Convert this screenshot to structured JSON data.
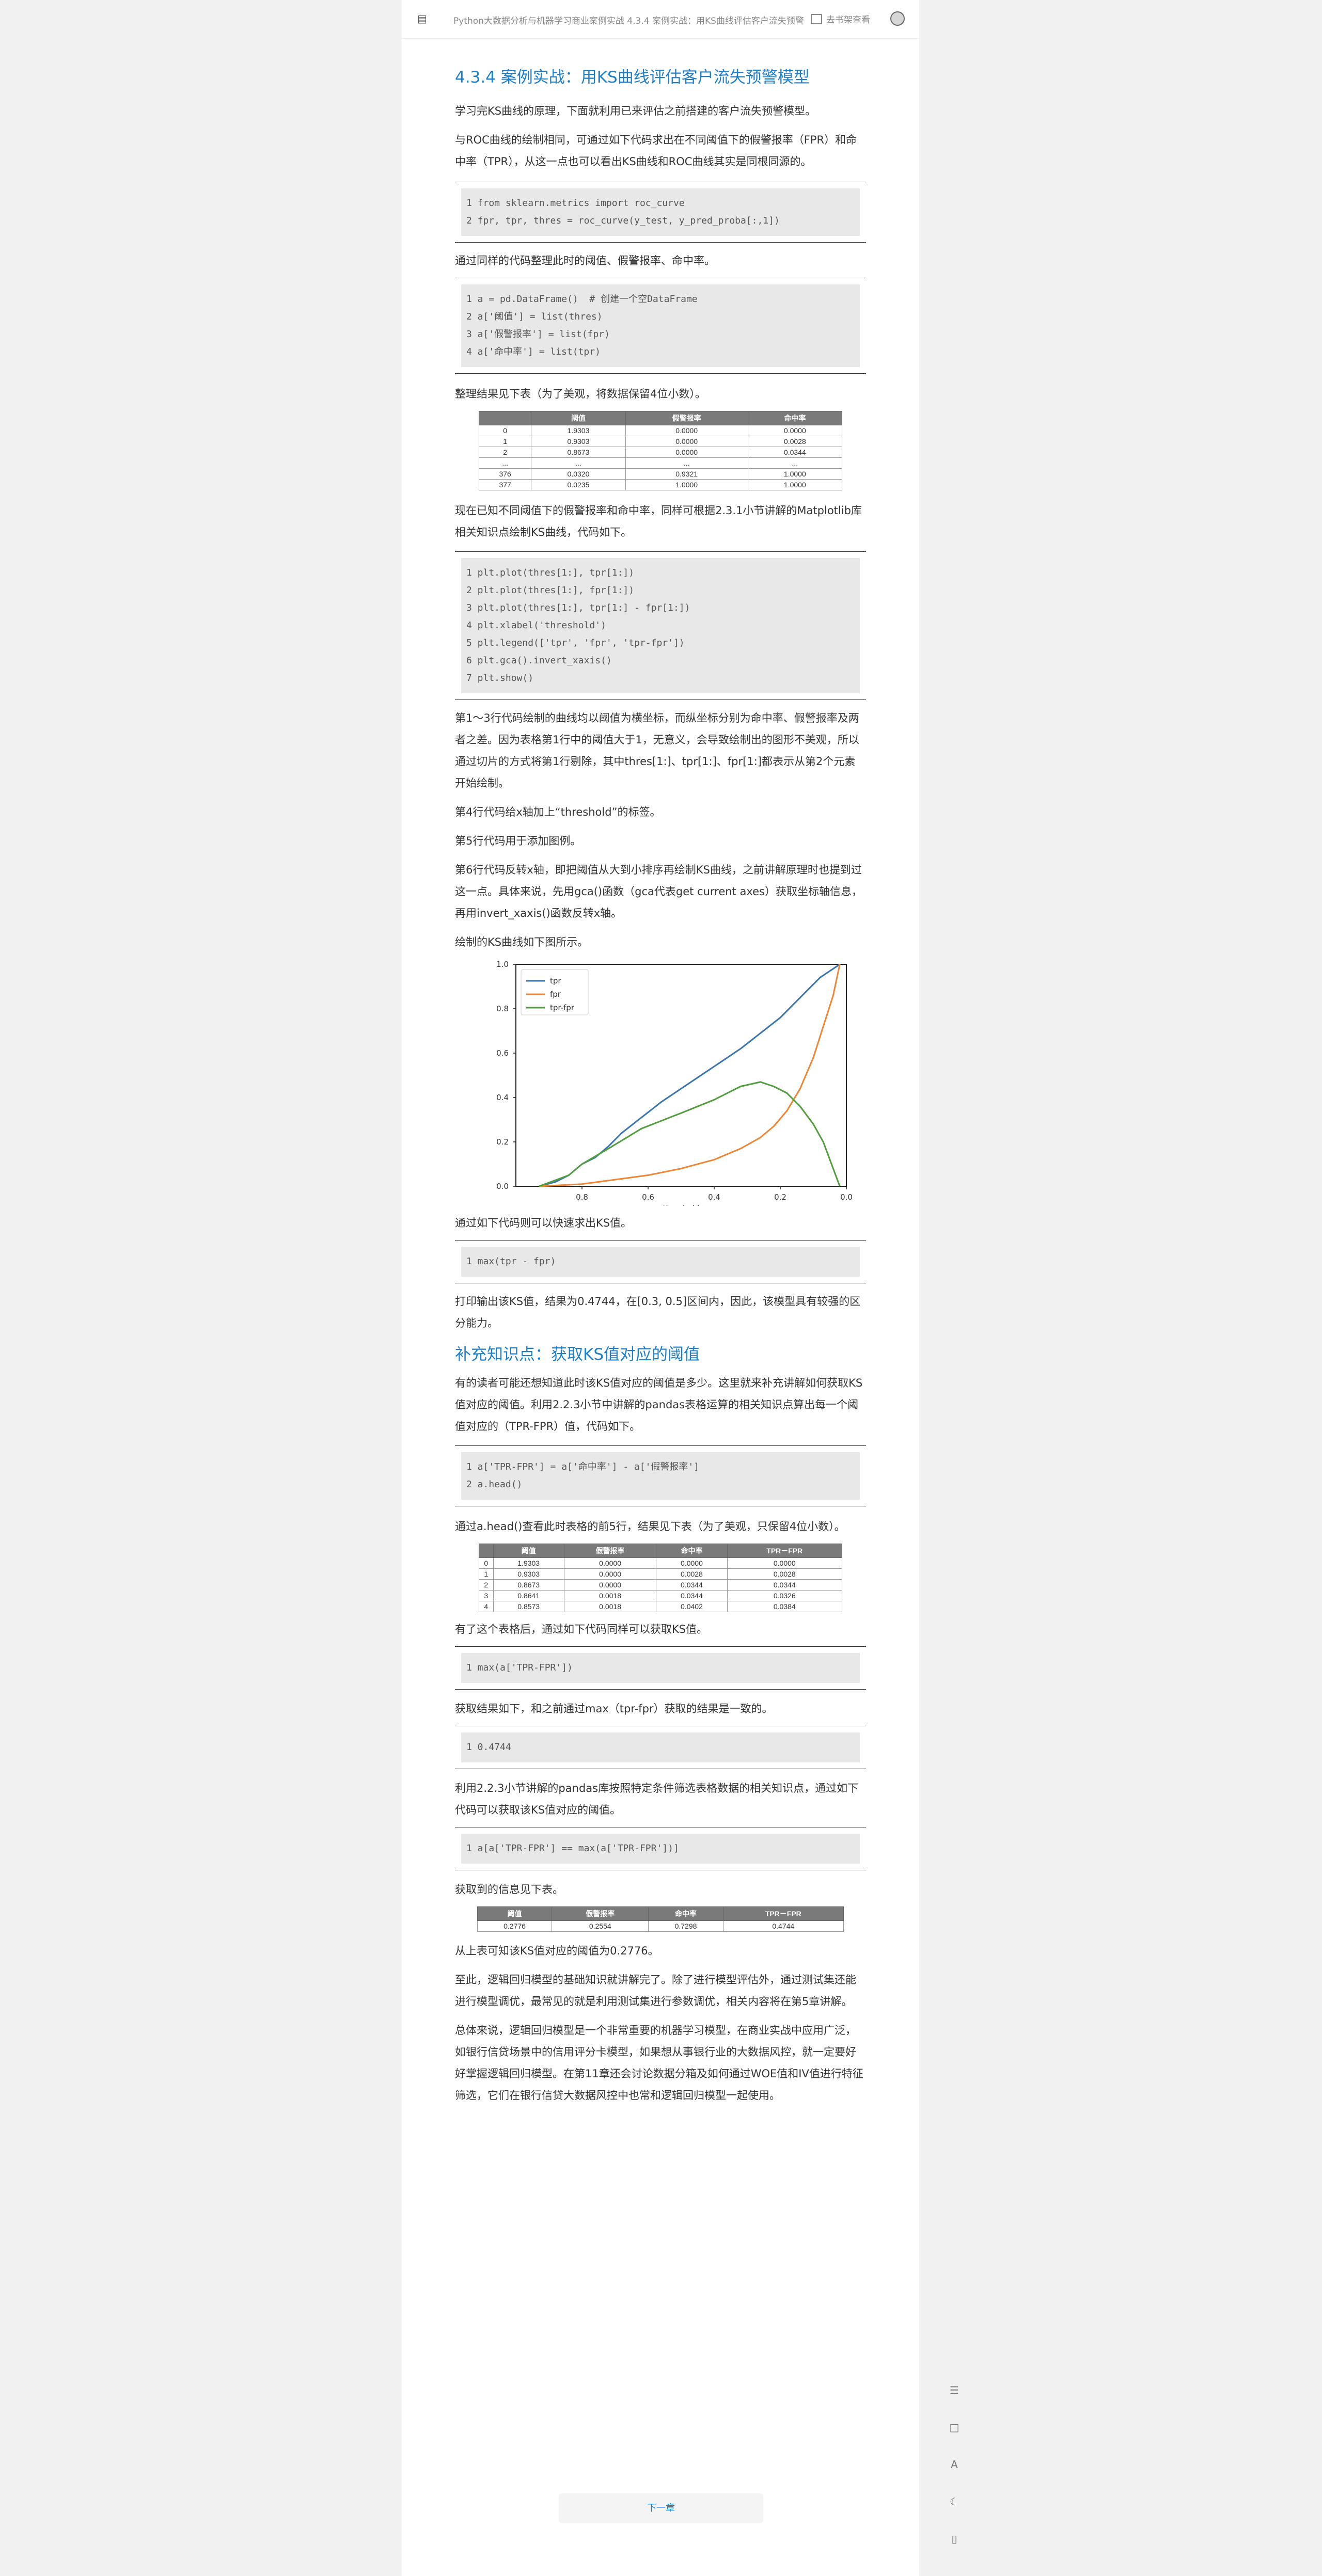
{
  "header": {
    "breadcrumb": "Python大数据分析与机器学习商业案例实战 4.3.4 案例实战：用KS曲线评估客户流失预警",
    "shelf_label": "去书架查看"
  },
  "section1": {
    "title": "4.3.4 案例实战：用KS曲线评估客户流失预警模型",
    "p1": "学习完KS曲线的原理，下面就利用已来评估之前搭建的客户流失预警模型。",
    "p2": "与ROC曲线的绘制相同，可通过如下代码求出在不同阈值下的假警报率（FPR）和命中率（TPR），从这一点也可以看出KS曲线和ROC曲线其实是同根同源的。",
    "code1": "1 from sklearn.metrics import roc_curve\n2 fpr, tpr, thres = roc_curve(y_test, y_pred_proba[:,1])",
    "p3": "通过同样的代码整理此时的阈值、假警报率、命中率。",
    "code2": "1 a = pd.DataFrame()  # 创建一个空DataFrame\n2 a['阈值'] = list(thres)\n3 a['假警报率'] = list(fpr)\n4 a['命中率'] = list(tpr)",
    "p4": "整理结果见下表（为了美观，将数据保留4位小数）。",
    "table1": {
      "headers": [
        "",
        "阈值",
        "假警报率",
        "命中率"
      ],
      "rows": [
        [
          "0",
          "1.9303",
          "0.0000",
          "0.0000"
        ],
        [
          "1",
          "0.9303",
          "0.0000",
          "0.0028"
        ],
        [
          "2",
          "0.8673",
          "0.0000",
          "0.0344"
        ],
        [
          "...",
          "...",
          "...",
          "..."
        ],
        [
          "376",
          "0.0320",
          "0.9321",
          "1.0000"
        ],
        [
          "377",
          "0.0235",
          "1.0000",
          "1.0000"
        ]
      ]
    },
    "p5": "现在已知不同阈值下的假警报率和命中率，同样可根据2.3.1小节讲解的Matplotlib库相关知识点绘制KS曲线，代码如下。",
    "code3": "1 plt.plot(thres[1:], tpr[1:])\n2 plt.plot(thres[1:], fpr[1:])\n3 plt.plot(thres[1:], tpr[1:] - fpr[1:])\n4 plt.xlabel('threshold')\n5 plt.legend(['tpr', 'fpr', 'tpr-fpr'])\n6 plt.gca().invert_xaxis()\n7 plt.show()",
    "p6": "第1～3行代码绘制的曲线均以阈值为横坐标，而纵坐标分别为命中率、假警报率及两者之差。因为表格第1行中的阈值大于1，无意义，会导致绘制出的图形不美观，所以通过切片的方式将第1行剔除，其中thres[1:]、tpr[1:]、fpr[1:]都表示从第2个元素开始绘制。",
    "p7": "第4行代码给x轴加上“threshold”的标签。",
    "p8": "第5行代码用于添加图例。",
    "p9": "第6行代码反转x轴，即把阈值从大到小排序再绘制KS曲线，之前讲解原理时也提到过这一点。具体来说，先用gca()函数（gca代表get current axes）获取坐标轴信息，再用invert_xaxis()函数反转x轴。",
    "p10": "绘制的KS曲线如下图所示。",
    "p11": "通过如下代码则可以快速求出KS值。",
    "code4": "1 max(tpr - fpr)",
    "p12": "打印输出该KS值，结果为0.4744，在[0.3, 0.5]区间内，因此，该模型具有较强的区分能力。"
  },
  "section2": {
    "title": "补充知识点：获取KS值对应的阈值",
    "p1": "有的读者可能还想知道此时该KS值对应的阈值是多少。这里就来补充讲解如何获取KS值对应的阈值。利用2.2.3小节中讲解的pandas表格运算的相关知识点算出每一个阈值对应的（TPR-FPR）值，代码如下。",
    "code1": "1 a['TPR-FPR'] = a['命中率'] - a['假警报率']\n2 a.head()",
    "p2": "通过a.head()查看此时表格的前5行，结果见下表（为了美观，只保留4位小数）。",
    "table2": {
      "headers": [
        "",
        "阈值",
        "假警报率",
        "命中率",
        "TPR－FPR"
      ],
      "rows": [
        [
          "0",
          "1.9303",
          "0.0000",
          "0.0000",
          "0.0000"
        ],
        [
          "1",
          "0.9303",
          "0.0000",
          "0.0028",
          "0.0028"
        ],
        [
          "2",
          "0.8673",
          "0.0000",
          "0.0344",
          "0.0344"
        ],
        [
          "3",
          "0.8641",
          "0.0018",
          "0.0344",
          "0.0326"
        ],
        [
          "4",
          "0.8573",
          "0.0018",
          "0.0402",
          "0.0384"
        ]
      ]
    },
    "p3": "有了这个表格后，通过如下代码同样可以获取KS值。",
    "code2": "1 max(a['TPR-FPR'])",
    "p4": "获取结果如下，和之前通过max（tpr-fpr）获取的结果是一致的。",
    "code3": "1 0.4744",
    "p5": "利用2.2.3小节讲解的pandas库按照特定条件筛选表格数据的相关知识点，通过如下代码可以获取该KS值对应的阈值。",
    "code4": "1 a[a['TPR-FPR'] == max(a['TPR-FPR'])]",
    "p6": "获取到的信息见下表。",
    "table3": {
      "headers": [
        "阈值",
        "假警报率",
        "命中率",
        "TPR－FPR"
      ],
      "rows": [
        [
          "0.2776",
          "0.2554",
          "0.7298",
          "0.4744"
        ]
      ]
    },
    "p7": "从上表可知该KS值对应的阈值为0.2776。",
    "p8": "至此，逻辑回归模型的基础知识就讲解完了。除了进行模型评估外，通过测试集还能进行模型调优，最常见的就是利用测试集进行参数调优，相关内容将在第5章讲解。",
    "p9": "总体来说，逻辑回归模型是一个非常重要的机器学习模型，在商业实战中应用广泛，如银行信贷场景中的信用评分卡模型，如果想从事银行业的大数据风控，就一定要好好掌握逻辑回归模型。在第11章还会讨论数据分箱及如何通过WOE值和IV值进行特征筛选，它们在银行信贷大数据风控中也常和逻辑回归模型一起使用。"
  },
  "next_button": "下一章",
  "chart_data": {
    "type": "line",
    "title": "",
    "xlabel": "threshold",
    "ylabel": "",
    "xlim": [
      1.0,
      0.0
    ],
    "x_inverted": true,
    "ylim": [
      0.0,
      1.0
    ],
    "xticks": [
      "0.8",
      "0.6",
      "0.4",
      "0.2",
      "0.0"
    ],
    "yticks": [
      "0.0",
      "0.2",
      "0.4",
      "0.6",
      "0.8",
      "1.0"
    ],
    "legend": "top-left",
    "grid": false,
    "series": [
      {
        "name": "tpr",
        "color": "#3b75af",
        "x": [
          0.93,
          0.88,
          0.84,
          0.8,
          0.76,
          0.72,
          0.68,
          0.62,
          0.56,
          0.5,
          0.44,
          0.38,
          0.32,
          0.26,
          0.2,
          0.16,
          0.12,
          0.08,
          0.05,
          0.02
        ],
        "y": [
          0.0,
          0.02,
          0.05,
          0.1,
          0.13,
          0.18,
          0.24,
          0.31,
          0.38,
          0.44,
          0.5,
          0.56,
          0.62,
          0.69,
          0.76,
          0.82,
          0.88,
          0.94,
          0.97,
          1.0
        ]
      },
      {
        "name": "fpr",
        "color": "#ef8636",
        "x": [
          0.93,
          0.8,
          0.7,
          0.6,
          0.5,
          0.4,
          0.32,
          0.26,
          0.22,
          0.18,
          0.14,
          0.1,
          0.07,
          0.04,
          0.02
        ],
        "y": [
          0.0,
          0.01,
          0.03,
          0.05,
          0.08,
          0.12,
          0.17,
          0.22,
          0.27,
          0.34,
          0.44,
          0.58,
          0.72,
          0.86,
          1.0
        ]
      },
      {
        "name": "tpr-fpr",
        "color": "#519e3e",
        "x": [
          0.93,
          0.84,
          0.8,
          0.72,
          0.62,
          0.5,
          0.4,
          0.32,
          0.26,
          0.22,
          0.18,
          0.14,
          0.1,
          0.07,
          0.05,
          0.02
        ],
        "y": [
          0.0,
          0.05,
          0.1,
          0.17,
          0.26,
          0.33,
          0.39,
          0.45,
          0.47,
          0.45,
          0.42,
          0.36,
          0.28,
          0.2,
          0.12,
          0.0
        ]
      }
    ]
  }
}
